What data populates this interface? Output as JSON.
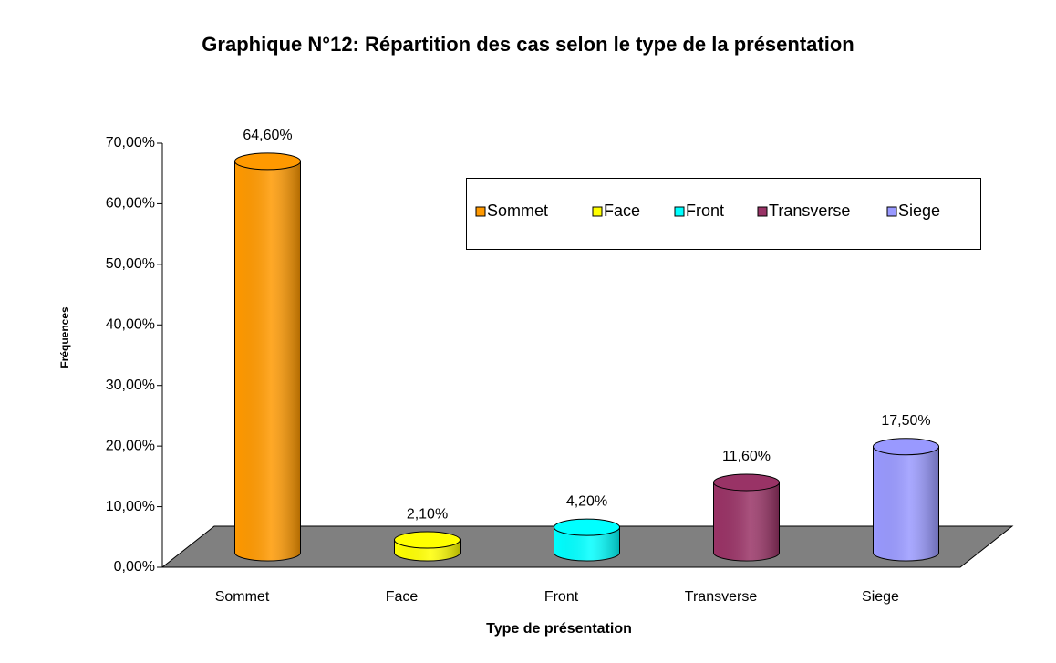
{
  "chart_data": {
    "type": "bar3d",
    "title": "Graphique N°12: Répartition des cas selon le type de la présentation",
    "x_label": "Type de présentation",
    "y_label": "Fréquences",
    "categories": [
      "Sommet",
      "Face",
      "Front",
      "Transverse",
      "Siege"
    ],
    "values": [
      64.6,
      2.1,
      4.2,
      11.6,
      17.5
    ],
    "value_labels": [
      "64,60%",
      "2,10%",
      "4,20%",
      "11,60%",
      "17,50%"
    ],
    "colors": [
      "#ff9900",
      "#ffff00",
      "#00ffff",
      "#993366",
      "#9999ff"
    ],
    "ylim": [
      0,
      70
    ],
    "yticks": [
      {
        "value": 0,
        "label": "0,00%"
      },
      {
        "value": 10,
        "label": "10,00%"
      },
      {
        "value": 20,
        "label": "20,00%"
      },
      {
        "value": 30,
        "label": "30,00%"
      },
      {
        "value": 40,
        "label": "40,00%"
      },
      {
        "value": 50,
        "label": "50,00%"
      },
      {
        "value": 60,
        "label": "60,00%"
      },
      {
        "value": 70,
        "label": "70,00%"
      }
    ],
    "legend": "top-right"
  }
}
